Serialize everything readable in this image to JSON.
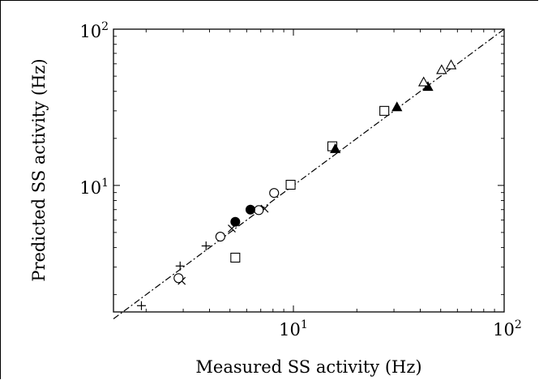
{
  "chart_data": {
    "type": "scatter",
    "title": "",
    "xlabel": "Measured SS activity (Hz)",
    "ylabel": "Predicted SS activity (Hz)",
    "xscale": "log",
    "yscale": "log",
    "xlim": [
      1.4,
      100
    ],
    "ylim": [
      1.55,
      100
    ],
    "grid": false,
    "legend": "none",
    "x_ticks": [
      {
        "value": 10,
        "base": "10",
        "exp": "1"
      },
      {
        "value": 100,
        "base": "10",
        "exp": "2"
      }
    ],
    "y_ticks": [
      {
        "value": 10,
        "base": "10",
        "exp": "1"
      },
      {
        "value": 100,
        "base": "10",
        "exp": "2"
      }
    ],
    "reference_line": {
      "style": "dash-dot",
      "x": [
        1.4,
        100
      ],
      "y": [
        1.4,
        100
      ]
    },
    "series": [
      {
        "marker": "plus",
        "x": [
          1.9,
          2.9,
          3.85
        ],
        "y": [
          1.7,
          3.05,
          4.1
        ]
      },
      {
        "marker": "x",
        "x": [
          2.95,
          5.1,
          7.3
        ],
        "y": [
          2.45,
          5.3,
          7.1
        ]
      },
      {
        "marker": "circle-open",
        "x": [
          2.85,
          4.5,
          6.85,
          8.1
        ],
        "y": [
          2.55,
          4.7,
          6.95,
          8.95
        ]
      },
      {
        "marker": "circle-filled",
        "x": [
          5.3,
          6.25
        ],
        "y": [
          5.85,
          7.0
        ]
      },
      {
        "marker": "square-open",
        "x": [
          5.3,
          9.7,
          15.3,
          27.0
        ],
        "y": [
          3.45,
          10.1,
          17.8,
          30.0
        ]
      },
      {
        "marker": "triangle-filled",
        "x": [
          15.8,
          31.0,
          43.5
        ],
        "y": [
          17.0,
          31.5,
          42.5
        ]
      },
      {
        "marker": "triangle-open",
        "x": [
          41.5,
          50.5,
          56.0
        ],
        "y": [
          45.5,
          54.5,
          58.5
        ]
      }
    ]
  }
}
